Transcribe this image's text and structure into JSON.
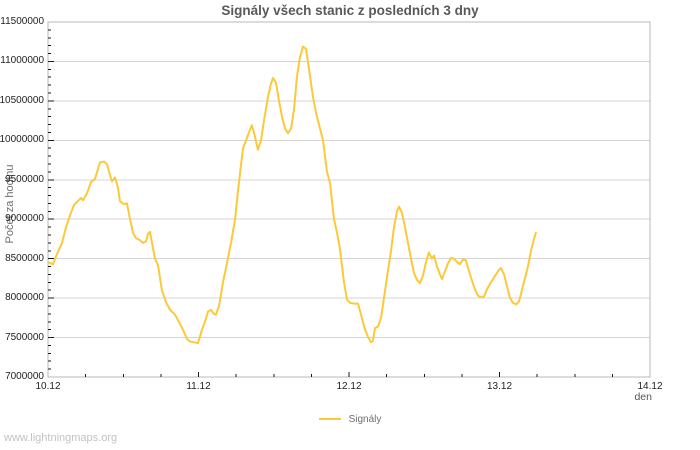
{
  "watermark": {
    "text": "www.lightningmaps.org"
  },
  "theme": {
    "background": "#ffffff",
    "grid": "#d4d4d4",
    "border": "#b8b8b8",
    "tick": "#1a1a1a",
    "title_text": "#595959",
    "tick_text": "#1f1f1f",
    "axis_label_text": "#6e6e6e",
    "watermark_text": "#c2c2c2",
    "series_yellow": "#FBC93C"
  },
  "chart_data": {
    "type": "line",
    "title": "Signály všech stanic z posledních 3 dny",
    "xlabel": "den",
    "ylabel": "Počet za hodinu",
    "grid": "horizontal-major",
    "x_range": [
      10,
      14
    ],
    "x_minor_step": 0.25,
    "x_ticks": [
      "10.12",
      "11.12",
      "12.12",
      "13.12",
      "14.12"
    ],
    "y_range": [
      7000000,
      11500000
    ],
    "y_tick_step": 500000,
    "y_minor_step": 100000,
    "y_tick_labels": [
      "7000000",
      "7500000",
      "8000000",
      "8500000",
      "9000000",
      "9500000",
      "10000000",
      "10500000",
      "11000000",
      "11500000"
    ],
    "legend": {
      "position": "bottom-center",
      "entries": [
        {
          "label": "Signály",
          "color": "#FBC93C"
        }
      ]
    },
    "series": [
      {
        "name": "Signály",
        "color": "#FBC93C",
        "points": [
          [
            10.007,
            8450000
          ],
          [
            10.033,
            8430000
          ],
          [
            10.06,
            8560000
          ],
          [
            10.093,
            8700000
          ],
          [
            10.12,
            8900000
          ],
          [
            10.146,
            9050000
          ],
          [
            10.173,
            9180000
          ],
          [
            10.199,
            9230000
          ],
          [
            10.219,
            9270000
          ],
          [
            10.233,
            9240000
          ],
          [
            10.259,
            9330000
          ],
          [
            10.286,
            9470000
          ],
          [
            10.312,
            9510000
          ],
          [
            10.332,
            9640000
          ],
          [
            10.346,
            9720000
          ],
          [
            10.372,
            9730000
          ],
          [
            10.392,
            9700000
          ],
          [
            10.412,
            9560000
          ],
          [
            10.425,
            9480000
          ],
          [
            10.445,
            9530000
          ],
          [
            10.465,
            9400000
          ],
          [
            10.478,
            9230000
          ],
          [
            10.505,
            9190000
          ],
          [
            10.525,
            9200000
          ],
          [
            10.545,
            9000000
          ],
          [
            10.565,
            8830000
          ],
          [
            10.585,
            8760000
          ],
          [
            10.611,
            8735000
          ],
          [
            10.631,
            8700000
          ],
          [
            10.651,
            8720000
          ],
          [
            10.664,
            8810000
          ],
          [
            10.678,
            8840000
          ],
          [
            10.691,
            8700000
          ],
          [
            10.711,
            8500000
          ],
          [
            10.731,
            8420000
          ],
          [
            10.757,
            8100000
          ],
          [
            10.784,
            7950000
          ],
          [
            10.811,
            7850000
          ],
          [
            10.844,
            7790000
          ],
          [
            10.87,
            7700000
          ],
          [
            10.897,
            7600000
          ],
          [
            10.924,
            7480000
          ],
          [
            10.944,
            7450000
          ],
          [
            10.97,
            7440000
          ],
          [
            10.997,
            7430000
          ],
          [
            11.023,
            7600000
          ],
          [
            11.043,
            7700000
          ],
          [
            11.063,
            7830000
          ],
          [
            11.083,
            7850000
          ],
          [
            11.103,
            7800000
          ],
          [
            11.116,
            7790000
          ],
          [
            11.136,
            7900000
          ],
          [
            11.163,
            8200000
          ],
          [
            11.189,
            8440000
          ],
          [
            11.216,
            8700000
          ],
          [
            11.243,
            9000000
          ],
          [
            11.262,
            9350000
          ],
          [
            11.276,
            9580000
          ],
          [
            11.296,
            9900000
          ],
          [
            11.316,
            10000000
          ],
          [
            11.335,
            10100000
          ],
          [
            11.355,
            10190000
          ],
          [
            11.375,
            10050000
          ],
          [
            11.395,
            9880000
          ],
          [
            11.415,
            10000000
          ],
          [
            11.435,
            10250000
          ],
          [
            11.462,
            10550000
          ],
          [
            11.482,
            10720000
          ],
          [
            11.495,
            10790000
          ],
          [
            11.515,
            10730000
          ],
          [
            11.535,
            10500000
          ],
          [
            11.555,
            10300000
          ],
          [
            11.575,
            10150000
          ],
          [
            11.595,
            10090000
          ],
          [
            11.615,
            10150000
          ],
          [
            11.635,
            10400000
          ],
          [
            11.654,
            10800000
          ],
          [
            11.674,
            11050000
          ],
          [
            11.694,
            11190000
          ],
          [
            11.714,
            11160000
          ],
          [
            11.734,
            10900000
          ],
          [
            11.761,
            10550000
          ],
          [
            11.781,
            10350000
          ],
          [
            11.807,
            10150000
          ],
          [
            11.827,
            10000000
          ],
          [
            11.854,
            9600000
          ],
          [
            11.874,
            9460000
          ],
          [
            11.9,
            9000000
          ],
          [
            11.92,
            8830000
          ],
          [
            11.94,
            8620000
          ],
          [
            11.967,
            8200000
          ],
          [
            11.987,
            7980000
          ],
          [
            12.007,
            7940000
          ],
          [
            12.033,
            7930000
          ],
          [
            12.06,
            7930000
          ],
          [
            12.086,
            7750000
          ],
          [
            12.106,
            7600000
          ],
          [
            12.126,
            7510000
          ],
          [
            12.146,
            7440000
          ],
          [
            12.159,
            7460000
          ],
          [
            12.173,
            7620000
          ],
          [
            12.193,
            7640000
          ],
          [
            12.213,
            7750000
          ],
          [
            12.232,
            8000000
          ],
          [
            12.259,
            8350000
          ],
          [
            12.279,
            8600000
          ],
          [
            12.299,
            8900000
          ],
          [
            12.319,
            9100000
          ],
          [
            12.332,
            9160000
          ],
          [
            12.352,
            9080000
          ],
          [
            12.372,
            8900000
          ],
          [
            12.392,
            8700000
          ],
          [
            12.412,
            8500000
          ],
          [
            12.432,
            8320000
          ],
          [
            12.452,
            8230000
          ],
          [
            12.472,
            8190000
          ],
          [
            12.491,
            8280000
          ],
          [
            12.511,
            8450000
          ],
          [
            12.531,
            8580000
          ],
          [
            12.551,
            8500000
          ],
          [
            12.565,
            8540000
          ],
          [
            12.585,
            8400000
          ],
          [
            12.604,
            8300000
          ],
          [
            12.618,
            8240000
          ],
          [
            12.638,
            8340000
          ],
          [
            12.658,
            8440000
          ],
          [
            12.678,
            8510000
          ],
          [
            12.698,
            8500000
          ],
          [
            12.717,
            8460000
          ],
          [
            12.737,
            8430000
          ],
          [
            12.757,
            8490000
          ],
          [
            12.777,
            8480000
          ],
          [
            12.797,
            8350000
          ],
          [
            12.817,
            8220000
          ],
          [
            12.837,
            8110000
          ],
          [
            12.857,
            8030000
          ],
          [
            12.877,
            8010000
          ],
          [
            12.897,
            8020000
          ],
          [
            12.917,
            8110000
          ],
          [
            12.937,
            8180000
          ],
          [
            12.957,
            8240000
          ],
          [
            12.977,
            8300000
          ],
          [
            12.997,
            8360000
          ],
          [
            13.01,
            8380000
          ],
          [
            13.03,
            8300000
          ],
          [
            13.05,
            8150000
          ],
          [
            13.07,
            8000000
          ],
          [
            13.09,
            7940000
          ],
          [
            13.11,
            7920000
          ],
          [
            13.13,
            7960000
          ],
          [
            13.149,
            8100000
          ],
          [
            13.169,
            8250000
          ],
          [
            13.189,
            8400000
          ],
          [
            13.209,
            8600000
          ],
          [
            13.229,
            8750000
          ],
          [
            13.242,
            8830000
          ]
        ]
      }
    ]
  }
}
